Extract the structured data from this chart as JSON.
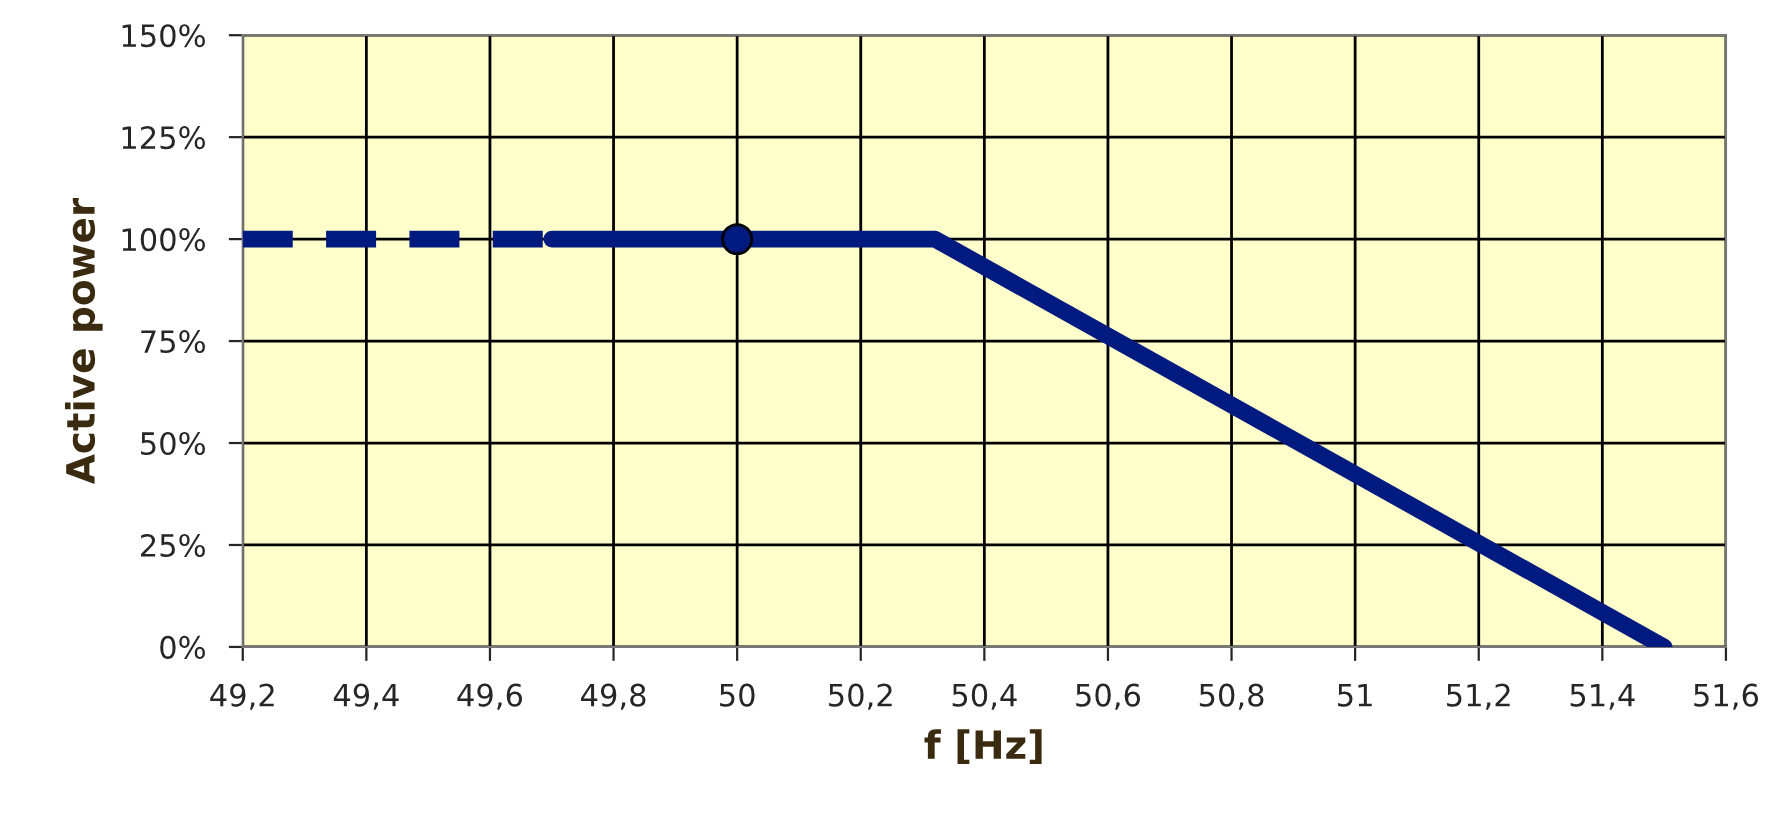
{
  "chart_data": {
    "type": "line",
    "xlabel": "f [Hz]",
    "ylabel": "Active power",
    "series": [
      {
        "color": "#001a80",
        "x": [
          49.2,
          49.7
        ],
        "values": [
          100,
          100
        ],
        "line_style": "dashed",
        "marker": "none"
      },
      {
        "color": "#001a80",
        "x": [
          49.7,
          50.32,
          51.5
        ],
        "values": [
          100,
          100,
          0
        ],
        "line_style": "solid",
        "marker": "none"
      },
      {
        "type": "scatter",
        "color": "#001a80",
        "x": [
          50
        ],
        "values": [
          100
        ],
        "marker": "circle"
      }
    ],
    "xlim": [
      49.2,
      51.6
    ],
    "xticks": [
      {
        "value": 49.2,
        "label": "49,2"
      },
      {
        "value": 49.4,
        "label": "49,4"
      },
      {
        "value": 49.6,
        "label": "49,6"
      },
      {
        "value": 49.8,
        "label": "49,8"
      },
      {
        "value": 50,
        "label": "50"
      },
      {
        "value": 50.2,
        "label": "50,2"
      },
      {
        "value": 50.4,
        "label": "50,4"
      },
      {
        "value": 50.6,
        "label": "50,6"
      },
      {
        "value": 50.8,
        "label": "50,8"
      },
      {
        "value": 51,
        "label": "51"
      },
      {
        "value": 51.2,
        "label": "51,2"
      },
      {
        "value": 51.4,
        "label": "51,4"
      },
      {
        "value": 51.6,
        "label": "51,6"
      }
    ],
    "ylim": [
      0,
      150
    ],
    "yticks": [
      {
        "value": 0,
        "label": "0%"
      },
      {
        "value": 25,
        "label": "25%"
      },
      {
        "value": 50,
        "label": "50%"
      },
      {
        "value": 75,
        "label": "75%"
      },
      {
        "value": 100,
        "label": "100%"
      },
      {
        "value": 125,
        "label": "125%"
      },
      {
        "value": 150,
        "label": "150%"
      }
    ],
    "grid": true,
    "legend": false
  }
}
